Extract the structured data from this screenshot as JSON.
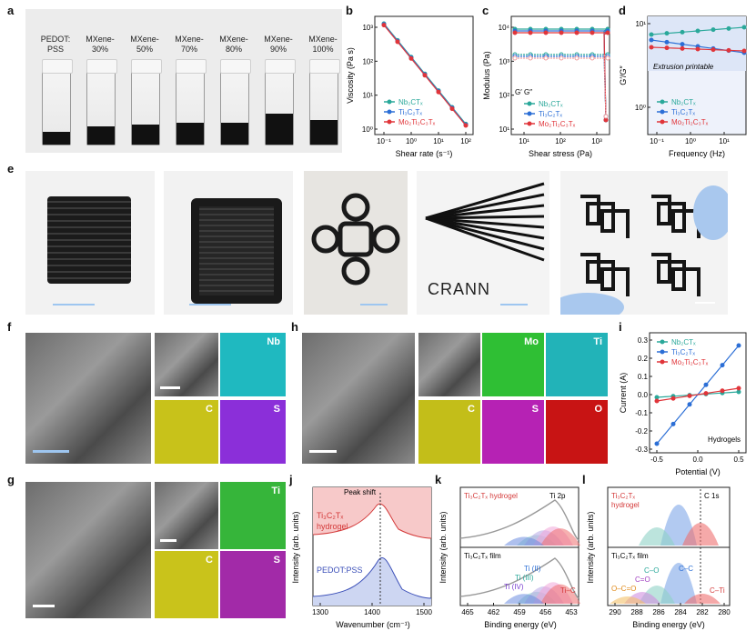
{
  "panels": {
    "a": "a",
    "b": "b",
    "c": "c",
    "d": "d",
    "e": "e",
    "f": "f",
    "g": "g",
    "h": "h",
    "i": "i",
    "j": "j",
    "k": "k",
    "l": "l"
  },
  "vials": [
    {
      "line1": "PEDOT:",
      "line2": "PSS",
      "fill": 0.18
    },
    {
      "line1": "MXene-",
      "line2": "30%",
      "fill": 0.25
    },
    {
      "line1": "MXene-",
      "line2": "50%",
      "fill": 0.28
    },
    {
      "line1": "MXene-",
      "line2": "70%",
      "fill": 0.3
    },
    {
      "line1": "MXene-",
      "line2": "80%",
      "fill": 0.3
    },
    {
      "line1": "MXene-",
      "line2": "90%",
      "fill": 0.42
    },
    {
      "line1": "MXene-",
      "line2": "100%",
      "fill": 0.34
    }
  ],
  "legend3": [
    "Nb₂CTₓ",
    "Ti₃C₂Tₓ",
    "Mo₂Ti₂C₃Tₓ"
  ],
  "colors": {
    "nb": "#2aa89a",
    "ti": "#2c6fd6",
    "mo": "#e0353a",
    "mod_light": "#f0a0a0"
  },
  "chart_b": {
    "ylabel": "Viscosity (Pa s)",
    "xlabel": "Shear rate (s⁻¹)",
    "xticks": [
      "10⁻¹",
      "10⁰",
      "10¹",
      "10²"
    ],
    "yticks": [
      "10³",
      "10²",
      "10¹",
      "10⁰"
    ]
  },
  "chart_c": {
    "ylabel": "Modulus (Pa)",
    "xlabel": "Shear stress (Pa)",
    "xticks": [
      "10¹",
      "10²",
      "10³"
    ],
    "yticks": [
      "10⁴",
      "10³",
      "10²",
      "10¹"
    ],
    "gtext": "G′  G″"
  },
  "chart_d": {
    "ylabel": "G′/G″",
    "xlabel": "Frequency (Hz)",
    "xticks": [
      "10⁻¹",
      "10⁰",
      "10¹"
    ],
    "yticks": [
      "10¹",
      "10⁰"
    ],
    "note": "Extrusion printable"
  },
  "chart_i": {
    "ylabel": "Current (A)",
    "xlabel": "Potential (V)",
    "xticks": [
      "-0.5",
      "0.0",
      "0.5"
    ],
    "yticks": [
      "0.3",
      "0.2",
      "0.1",
      "0.0",
      "-0.1",
      "-0.2",
      "-0.3"
    ],
    "note": "Hydrogels"
  },
  "chart_j": {
    "ylabel": "Intensity (arb. units)",
    "xlabel": "Wavenumber (cm⁻¹)",
    "xticks": [
      "1300",
      "1400",
      "1500"
    ],
    "peak": "Peak shift",
    "top": "Ti₃C₂Tₓ",
    "top2": "hydrogel",
    "bottom": "PEDOT:PSS"
  },
  "chart_k": {
    "ylabel": "Intensity (arb. units)",
    "xlabel": "Binding energy (eV)",
    "xticks": [
      "465",
      "462",
      "459",
      "456",
      "453"
    ],
    "top": "Ti₃C₂Tₓ hydrogel",
    "tag": "Ti 2p",
    "film": "Ti₃C₂Tₓ film",
    "labels": [
      "Ti (II)",
      "Ti (III)",
      "Ti (IV)",
      "Ti–C"
    ]
  },
  "chart_l": {
    "ylabel": "Intensity (arb. units)",
    "xlabel": "Binding energy (eV)",
    "xticks": [
      "290",
      "288",
      "286",
      "284",
      "282",
      "280"
    ],
    "top": "Ti₃C₂Tₓ",
    "top2": "hydrogel",
    "tag": "C 1s",
    "film": "Ti₃C₂Tₓ film",
    "labels": [
      "C–C",
      "C–O",
      "C=O",
      "O–C=O",
      "C–Ti"
    ]
  },
  "prints": {
    "crann": "CRANN"
  },
  "maps": {
    "f": [
      "Nb",
      "C",
      "S"
    ],
    "h": [
      "Mo",
      "Ti",
      "C",
      "S",
      "O"
    ],
    "g": [
      "Ti",
      "C",
      "S"
    ]
  }
}
